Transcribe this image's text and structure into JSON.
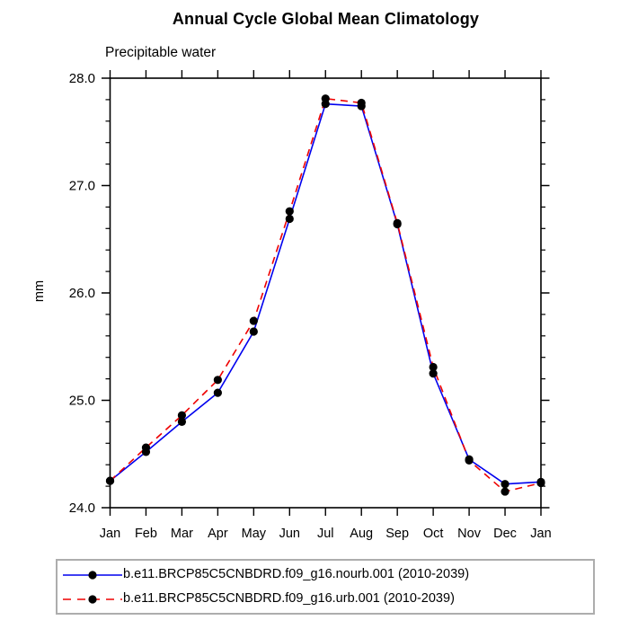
{
  "page": {
    "background": "#ffffff"
  },
  "chart_data": {
    "type": "line",
    "title": "Annual Cycle Global Mean Climatology",
    "subtitle": "Precipitable water",
    "xlabel": "",
    "ylabel": "mm",
    "categories": [
      "Jan",
      "Feb",
      "Mar",
      "Apr",
      "May",
      "Jun",
      "Jul",
      "Aug",
      "Sep",
      "Oct",
      "Nov",
      "Dec",
      "Jan"
    ],
    "ylim": [
      24.0,
      28.0
    ],
    "y_major_step": 1.0,
    "y_minor_step": 0.2,
    "y_tick_labels": [
      "24.0",
      "25.0",
      "26.0",
      "27.0",
      "28.0"
    ],
    "grid": false,
    "legend_position": "bottom",
    "axis_color": "#000000",
    "marker_color": "#000000",
    "series": [
      {
        "name": "b.e11.BRCP85C5CNBDRD.f09_g16.nourb.001 (2010-2039)",
        "color": "#0000ee",
        "line_style": "solid",
        "marker": "filled-circle",
        "values": [
          24.25,
          24.52,
          24.8,
          25.07,
          25.64,
          26.69,
          27.76,
          27.74,
          26.64,
          25.25,
          24.45,
          24.22,
          24.24
        ]
      },
      {
        "name": "b.e11.BRCP85C5CNBDRD.f09_g16.urb.001 (2010-2039)",
        "color": "#ee0000",
        "line_style": "dashed",
        "marker": "filled-circle",
        "values": [
          24.25,
          24.56,
          24.86,
          25.19,
          25.74,
          26.76,
          27.81,
          27.77,
          26.65,
          25.31,
          24.44,
          24.15,
          24.23
        ]
      }
    ]
  }
}
